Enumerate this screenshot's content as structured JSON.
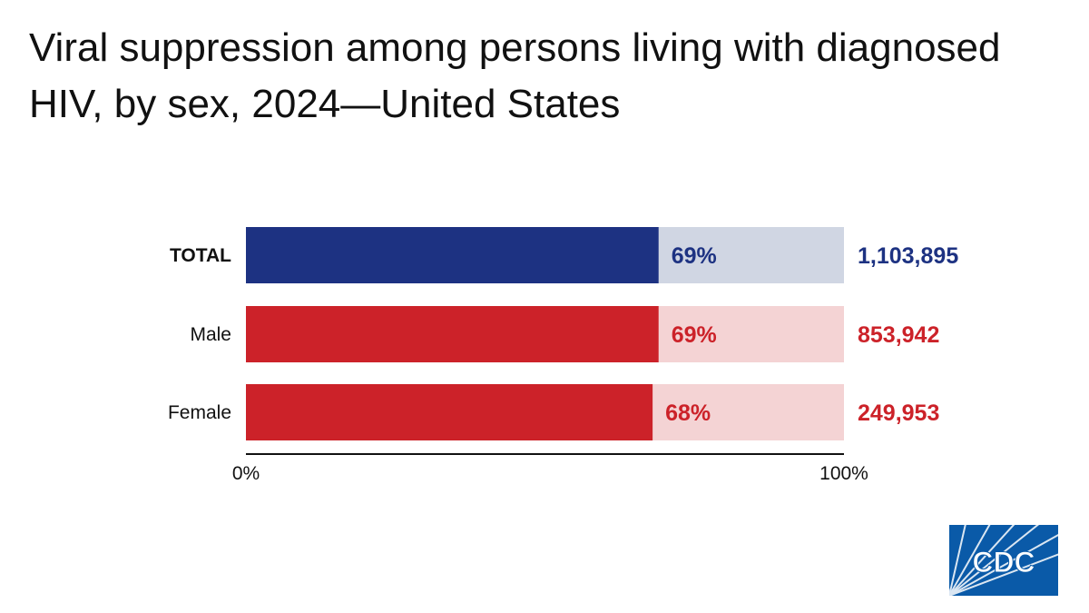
{
  "title": "Viral suppression among persons living with diagnosed HIV, by sex, 2024—United States",
  "chart_data": {
    "type": "bar",
    "orientation": "horizontal",
    "stacked_to_100": true,
    "categories": [
      "TOTAL",
      "Male",
      "Female"
    ],
    "values": [
      69,
      69,
      68
    ],
    "value_labels": [
      "69%",
      "69%",
      "68%"
    ],
    "counts": [
      "1,103,895",
      "853,942",
      "249,953"
    ],
    "xlim": [
      0,
      100
    ],
    "x_ticks": [
      "0%",
      "100%"
    ],
    "grid": false,
    "colors": {
      "total_fill": "#1d3282",
      "total_track": "#d0d6e3",
      "sex_fill": "#cc2229",
      "sex_track": "#f4d3d4"
    }
  },
  "logo": {
    "text": "CDC",
    "color": "#0a5aa8"
  }
}
